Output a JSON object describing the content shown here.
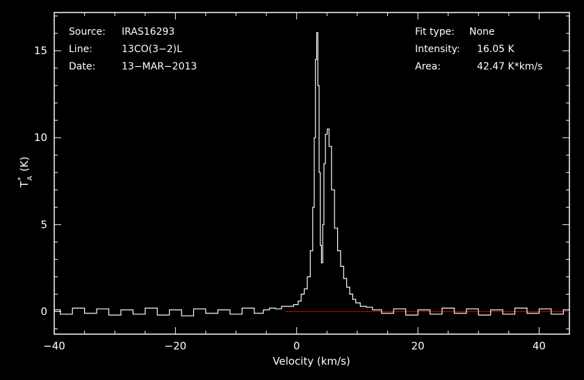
{
  "chart_data": {
    "type": "line",
    "xlabel": "Velocity (km/s)",
    "ylabel": "T",
    "ylabel_sup": "*",
    "ylabel_sub": "A",
    "ylabel_unit": "(K)",
    "xlim": [
      -40,
      45
    ],
    "ylim": [
      -1.3,
      17.2
    ],
    "x_ticks": [
      -40,
      -20,
      0,
      20,
      40
    ],
    "x_tick_labels": [
      "−40",
      "−20",
      "0",
      "20",
      "40"
    ],
    "y_ticks": [
      0,
      5,
      10,
      15
    ],
    "y_tick_labels": [
      "0",
      "5",
      "10",
      "15"
    ],
    "grid": false,
    "spectrum_color": "#ffffff",
    "baseline_color": "#cc0000",
    "baseline": {
      "x": [
        -2,
        45
      ],
      "y": 0
    },
    "info_left": [
      {
        "label": "Source:",
        "value": "IRAS16293"
      },
      {
        "label": "Line:",
        "value": "13CO(3−2)L"
      },
      {
        "label": "Date:",
        "value": "13−MAR−2013"
      }
    ],
    "info_right": [
      {
        "label": "Fit type:",
        "value": "None"
      },
      {
        "label": "Intensity:",
        "value": "16.05 K"
      },
      {
        "label": "Area:",
        "value": "42.47 K*km/s"
      }
    ],
    "series": [
      {
        "points": [
          [
            -40.0,
            0.1
          ],
          [
            -38.0,
            -0.15
          ],
          [
            -36.0,
            0.2
          ],
          [
            -34.0,
            -0.1
          ],
          [
            -32.0,
            0.15
          ],
          [
            -30.0,
            -0.2
          ],
          [
            -28.0,
            0.1
          ],
          [
            -26.0,
            -0.15
          ],
          [
            -24.0,
            0.2
          ],
          [
            -22.0,
            -0.2
          ],
          [
            -20.0,
            0.1
          ],
          [
            -18.0,
            -0.25
          ],
          [
            -16.0,
            0.15
          ],
          [
            -14.0,
            -0.1
          ],
          [
            -12.0,
            0.1
          ],
          [
            -10.0,
            -0.15
          ],
          [
            -8.0,
            0.2
          ],
          [
            -6.0,
            -0.1
          ],
          [
            -5.0,
            0.1
          ],
          [
            -4.0,
            0.2
          ],
          [
            -3.0,
            0.15
          ],
          [
            -2.0,
            0.3
          ],
          [
            -1.0,
            0.3
          ],
          [
            0.0,
            0.4
          ],
          [
            0.5,
            0.6
          ],
          [
            1.0,
            1.0
          ],
          [
            1.5,
            1.3
          ],
          [
            2.0,
            2.0
          ],
          [
            2.5,
            3.5
          ],
          [
            2.8,
            6.0
          ],
          [
            3.0,
            10.0
          ],
          [
            3.2,
            14.5
          ],
          [
            3.4,
            16.05
          ],
          [
            3.6,
            13.0
          ],
          [
            3.8,
            8.0
          ],
          [
            4.0,
            3.8
          ],
          [
            4.2,
            2.8
          ],
          [
            4.4,
            5.0
          ],
          [
            4.6,
            8.5
          ],
          [
            4.9,
            10.2
          ],
          [
            5.2,
            10.5
          ],
          [
            5.5,
            9.5
          ],
          [
            6.0,
            7.0
          ],
          [
            6.5,
            4.8
          ],
          [
            7.0,
            3.5
          ],
          [
            7.5,
            2.6
          ],
          [
            8.0,
            1.9
          ],
          [
            8.5,
            1.4
          ],
          [
            9.0,
            1.0
          ],
          [
            9.5,
            0.7
          ],
          [
            10.0,
            0.5
          ],
          [
            11.0,
            0.3
          ],
          [
            12.0,
            0.25
          ],
          [
            13.0,
            0.1
          ],
          [
            15.0,
            -0.1
          ],
          [
            17.0,
            0.15
          ],
          [
            19.0,
            -0.2
          ],
          [
            21.0,
            0.1
          ],
          [
            23.0,
            -0.15
          ],
          [
            25.0,
            0.2
          ],
          [
            27.0,
            -0.1
          ],
          [
            29.0,
            0.15
          ],
          [
            31.0,
            -0.2
          ],
          [
            33.0,
            0.1
          ],
          [
            35.0,
            -0.15
          ],
          [
            37.0,
            0.2
          ],
          [
            39.0,
            -0.1
          ],
          [
            41.0,
            0.15
          ],
          [
            43.0,
            -0.15
          ],
          [
            45.0,
            0.1
          ]
        ]
      }
    ]
  }
}
